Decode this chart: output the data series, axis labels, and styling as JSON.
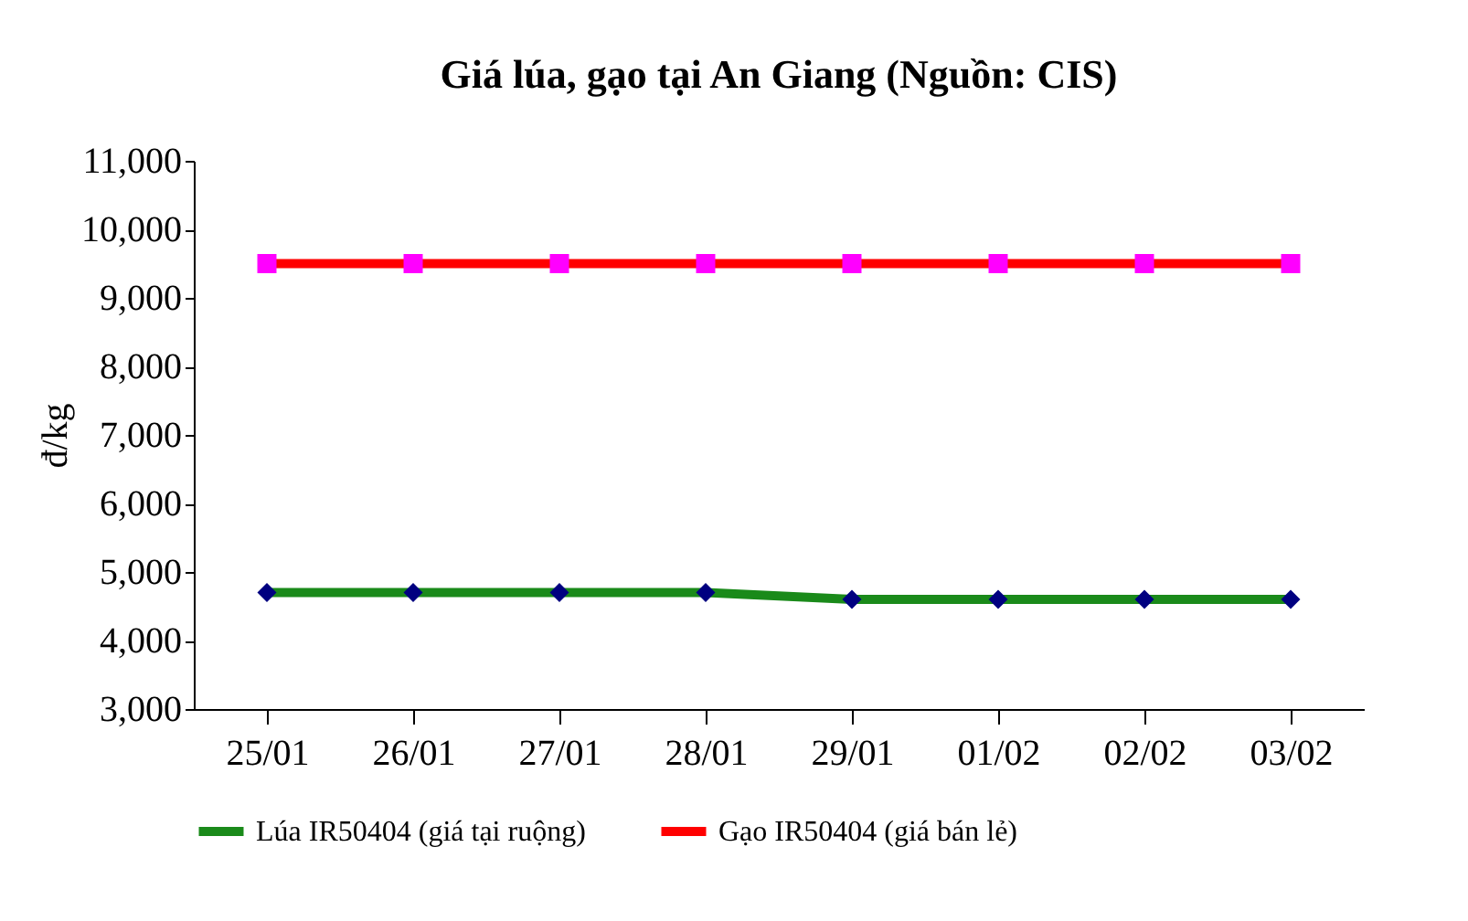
{
  "chart_data": {
    "type": "line",
    "title": "Giá lúa, gạo tại An Giang (Nguồn: CIS)",
    "ylabel": "đ/kg",
    "categories": [
      "25/01",
      "26/01",
      "27/01",
      "28/01",
      "29/01",
      "01/02",
      "02/02",
      "03/02"
    ],
    "series": [
      {
        "name": "Lúa IR50404 (giá tại ruộng)",
        "color": "#1a8a1a",
        "marker": "diamond",
        "colors": [
          "#000080",
          "#000080",
          "#000080",
          "#000080",
          "#000080",
          "#000080",
          "#000080",
          "#000080"
        ],
        "values": [
          4700,
          4700,
          4700,
          4700,
          4600,
          4600,
          4600,
          4600
        ]
      },
      {
        "name": "Gạo IR50404 (giá bán lẻ)",
        "color": "#ff0000",
        "marker": "square",
        "colors": [
          "#ff00ff",
          "#ff00ff",
          "#ff00ff",
          "#ff00ff",
          "#ff00ff",
          "#ff00ff",
          "#ff00ff",
          "#ff00ff"
        ],
        "values": [
          9500,
          9500,
          9500,
          9500,
          9500,
          9500,
          9500,
          9500
        ]
      }
    ],
    "ylim": [
      3000,
      11000
    ],
    "yticks": [
      {
        "value": 3000,
        "label": "3,000"
      },
      {
        "value": 4000,
        "label": "4,000"
      },
      {
        "value": 5000,
        "label": "5,000"
      },
      {
        "value": 6000,
        "label": "6,000"
      },
      {
        "value": 7000,
        "label": "7,000"
      },
      {
        "value": 8000,
        "label": "8,000"
      },
      {
        "value": 9000,
        "label": "9,000"
      },
      {
        "value": 10000,
        "label": "10,000"
      },
      {
        "value": 11000,
        "label": "11,000"
      }
    ],
    "grid": false,
    "legend": "bottom",
    "line_style": "solid"
  }
}
